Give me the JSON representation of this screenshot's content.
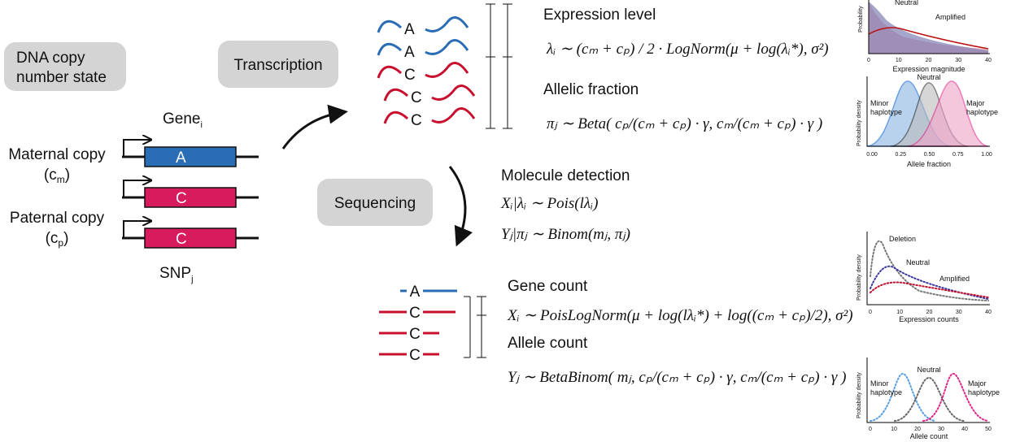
{
  "left": {
    "dna_box": [
      "DNA copy",
      "number state"
    ],
    "gene": {
      "text": "Gene",
      "sub": "i"
    },
    "maternal": {
      "line1": "Maternal copy",
      "line2": "(c",
      "sub": "m",
      "close": ")"
    },
    "paternal": {
      "line1": "Paternal copy",
      "line2": "(c",
      "sub": "p",
      "close": ")"
    },
    "snp": {
      "text": "SNP",
      "sub": "j"
    },
    "alleles": [
      "A",
      "C",
      "C"
    ]
  },
  "steps": {
    "transcription": "Transcription",
    "sequencing": "Sequencing"
  },
  "transcripts": [
    "A",
    "A",
    "C",
    "C",
    "C"
  ],
  "reads": [
    "A",
    "C",
    "C",
    "C"
  ],
  "equations": {
    "expression_level": {
      "title": "Expression level",
      "formula": "λᵢ ∼ (cₘ + cₚ) / 2 · LogNorm(μ + log(λᵢ*), σ²)"
    },
    "allelic_fraction": {
      "title": "Allelic fraction",
      "formula": "πⱼ ∼ Beta( cₚ/(cₘ + cₚ) · γ, cₘ/(cₘ + cₚ) · γ )"
    },
    "molecule_detection": {
      "title": "Molecule detection",
      "formula1": "Xᵢ|λᵢ ∼ Pois(lλᵢ)",
      "formula2": "Yⱼ|πⱼ ∼ Binom(mⱼ, πⱼ)"
    },
    "gene_count": {
      "title": "Gene count",
      "formula": "Xᵢ ∼ PoisLogNorm(μ + log(lλᵢ*) + log((cₘ + cₚ)/2), σ²)"
    },
    "allele_count": {
      "title": "Allele count",
      "formula": "Yⱼ ∼ BetaBinom( mⱼ, cₚ/(cₘ + cₚ) · γ, cₘ/(cₘ + cₚ) · γ )"
    }
  },
  "plots": [
    {
      "ylabel": "Probability",
      "labels": [
        "Neutral",
        "Amplified"
      ],
      "xticks": [
        "0",
        "10",
        "20",
        "30",
        "40"
      ],
      "xlabel": "Expression magnitude"
    },
    {
      "ylabel": "Probability density",
      "labels": [
        "Minor",
        "haplotype",
        "Neutral",
        "Major",
        "haplotype"
      ],
      "xticks": [
        "0.00",
        "0.25",
        "0.50",
        "0.75",
        "1.00"
      ],
      "xlabel": "Allele fraction"
    },
    {
      "ylabel": "Probability density",
      "labels": [
        "Deletion",
        "Neutral",
        "Amplified"
      ],
      "xticks": [
        "0",
        "10",
        "20",
        "30",
        "40"
      ],
      "xlabel": "Expression counts"
    },
    {
      "ylabel": "Probability density",
      "labels": [
        "Neutral",
        "Minor",
        "haplotype",
        "Major",
        "haplotype"
      ],
      "xticks": [
        "0",
        "10",
        "20",
        "30",
        "40",
        "50"
      ],
      "xlabel": "Allele count"
    }
  ]
}
